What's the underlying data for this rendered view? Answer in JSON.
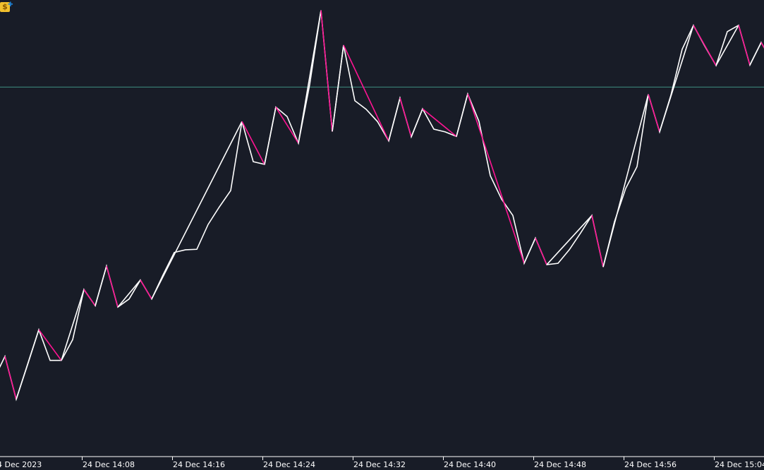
{
  "window": {
    "icon": "dollar-signal-icon"
  },
  "colors": {
    "background": "#181c27",
    "price_line": "#ffffff",
    "zigzag_up": "#ffffff",
    "zigzag_down": "#ff1493",
    "level_line": "#3e8e82",
    "axis": "#ffffff"
  },
  "chart_data": {
    "type": "line",
    "title": "",
    "xlabel": "",
    "ylabel": "",
    "grid": false,
    "x_ticks": [
      {
        "time": "14:00",
        "label": "24 Dec 2023"
      },
      {
        "time": "14:08",
        "label": "24 Dec 14:08"
      },
      {
        "time": "14:16",
        "label": "24 Dec 14:16"
      },
      {
        "time": "14:24",
        "label": "24 Dec 14:24"
      },
      {
        "time": "14:32",
        "label": "24 Dec 14:32"
      },
      {
        "time": "14:40",
        "label": "24 Dec 14:40"
      },
      {
        "time": "14:48",
        "label": "24 Dec 14:48"
      },
      {
        "time": "14:56",
        "label": "24 Dec 14:56"
      },
      {
        "time": "15:04",
        "label": "24 Dec 15:04"
      }
    ],
    "horizontal_level": 80.8,
    "series": [
      {
        "key": "price",
        "points": [
          [
            "14:00",
            15.9
          ],
          [
            "14:01",
            21.1
          ],
          [
            "14:02",
            11.6
          ],
          [
            "14:03",
            19.2
          ],
          [
            "14:04",
            27.0
          ],
          [
            "14:05",
            20.2
          ],
          [
            "14:06",
            20.2
          ],
          [
            "14:07",
            24.8
          ],
          [
            "14:08",
            35.9
          ],
          [
            "14:09",
            32.3
          ],
          [
            "14:10",
            41.1
          ],
          [
            "14:11",
            32.0
          ],
          [
            "14:12",
            33.8
          ],
          [
            "14:13",
            38.0
          ],
          [
            "14:14",
            33.8
          ],
          [
            "14:15",
            39.1
          ],
          [
            "14:16",
            44.1
          ],
          [
            "14:17",
            44.7
          ],
          [
            "14:18",
            44.8
          ],
          [
            "14:19",
            50.3
          ],
          [
            "14:20",
            54.2
          ],
          [
            "14:21",
            57.8
          ],
          [
            "14:22",
            73.1
          ],
          [
            "14:23",
            64.2
          ],
          [
            "14:24",
            63.6
          ],
          [
            "14:25",
            76.3
          ],
          [
            "14:26",
            74.2
          ],
          [
            "14:27",
            68.3
          ],
          [
            "14:28",
            81.3
          ],
          [
            "14:29",
            97.7
          ],
          [
            "14:30",
            70.9
          ],
          [
            "14:31",
            90.0
          ],
          [
            "14:32",
            77.7
          ],
          [
            "14:33",
            75.8
          ],
          [
            "14:34",
            73.1
          ],
          [
            "14:35",
            68.8
          ],
          [
            "14:36",
            78.3
          ],
          [
            "14:37",
            69.7
          ],
          [
            "14:38",
            75.9
          ],
          [
            "14:39",
            71.4
          ],
          [
            "14:40",
            70.8
          ],
          [
            "14:41",
            69.8
          ],
          [
            "14:42",
            79.2
          ],
          [
            "14:43",
            73.1
          ],
          [
            "14:44",
            61.1
          ],
          [
            "14:45",
            55.9
          ],
          [
            "14:46",
            52.3
          ],
          [
            "14:47",
            41.7
          ],
          [
            "14:48",
            47.3
          ],
          [
            "14:49",
            41.4
          ],
          [
            "14:50",
            41.7
          ],
          [
            "14:51",
            44.7
          ],
          [
            "14:52",
            48.4
          ],
          [
            "14:53",
            52.3
          ],
          [
            "14:54",
            40.9
          ],
          [
            "14:55",
            50.9
          ],
          [
            "14:56",
            58.3
          ],
          [
            "14:57",
            63.1
          ],
          [
            "14:58",
            79.1
          ],
          [
            "14:59",
            70.8
          ],
          [
            "15:00",
            78.9
          ],
          [
            "15:01",
            89.1
          ],
          [
            "15:02",
            94.4
          ],
          [
            "15:03",
            89.8
          ],
          [
            "15:04",
            85.5
          ],
          [
            "15:05",
            93.0
          ],
          [
            "15:06",
            94.4
          ],
          [
            "15:07",
            85.6
          ],
          [
            "15:08",
            90.6
          ],
          [
            "15:09",
            86.3
          ]
        ]
      },
      {
        "key": "zigzag",
        "points": [
          [
            "14:01",
            21.1
          ],
          [
            "14:02",
            11.6
          ],
          [
            "14:04",
            27.0
          ],
          [
            "14:06",
            20.2
          ],
          [
            "14:08",
            35.9
          ],
          [
            "14:09",
            32.3
          ],
          [
            "14:10",
            41.1
          ],
          [
            "14:11",
            32.0
          ],
          [
            "14:13",
            38.0
          ],
          [
            "14:14",
            33.8
          ],
          [
            "14:22",
            73.1
          ],
          [
            "14:24",
            63.6
          ],
          [
            "14:25",
            76.3
          ],
          [
            "14:27",
            68.3
          ],
          [
            "14:29",
            97.7
          ],
          [
            "14:30",
            70.9
          ],
          [
            "14:31",
            90.0
          ],
          [
            "14:35",
            68.8
          ],
          [
            "14:36",
            78.3
          ],
          [
            "14:37",
            69.7
          ],
          [
            "14:38",
            75.9
          ],
          [
            "14:41",
            69.8
          ],
          [
            "14:42",
            79.2
          ],
          [
            "14:47",
            41.7
          ],
          [
            "14:48",
            47.3
          ],
          [
            "14:49",
            41.4
          ],
          [
            "14:53",
            52.3
          ],
          [
            "14:54",
            40.9
          ],
          [
            "14:58",
            79.1
          ],
          [
            "14:59",
            70.8
          ],
          [
            "15:02",
            94.4
          ],
          [
            "15:04",
            85.5
          ],
          [
            "15:06",
            94.4
          ],
          [
            "15:07",
            85.6
          ],
          [
            "15:08",
            90.6
          ],
          [
            "15:09",
            86.3
          ]
        ]
      }
    ]
  }
}
